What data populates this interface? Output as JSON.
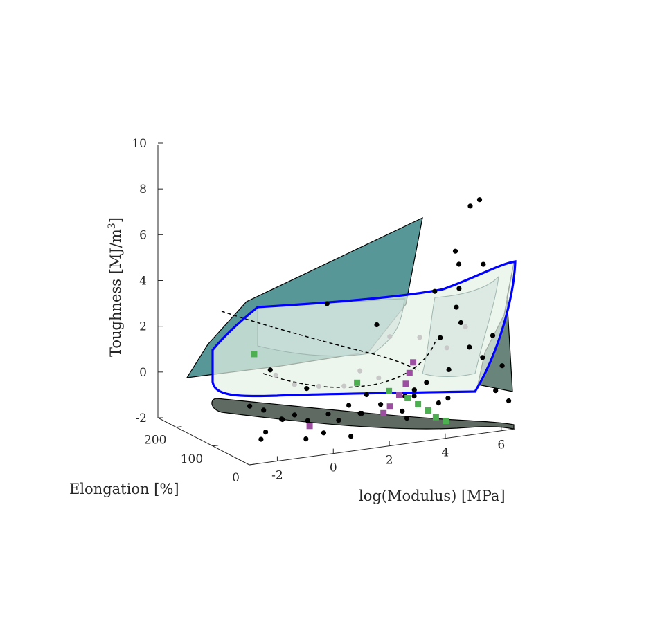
{
  "chart_data": {
    "type": "scatter",
    "projection": "3d",
    "xlabel": "log(Modulus) [MPa]",
    "ylabel": "Elongation [%]",
    "zlabel_main": "Toughness [MJ/m",
    "zlabel_sup": "3",
    "zlabel_tail": "]",
    "xticks": [
      "-2",
      "0",
      "2",
      "4",
      "6"
    ],
    "yticks": [
      "0",
      "100",
      "200"
    ],
    "zticks": [
      "-2",
      "0",
      "2",
      "4",
      "6",
      "8",
      "10"
    ],
    "xlim": [
      -3,
      6.5
    ],
    "ylim": [
      0,
      250
    ],
    "zlim": [
      -2,
      10
    ],
    "grid": false,
    "legend": "none",
    "colors": {
      "points": "#000000",
      "points_light": "#c8c8c8",
      "green_markers": "#4caf50",
      "purple_markers": "#9c4fa0",
      "boundary": "#0000ff",
      "back_surface": "#2e7d7d",
      "side_surface": "#4f6e63",
      "floor_shadow": "#5f6b62",
      "hull_fill": "#e6f2e6"
    },
    "series": [
      {
        "marker": "circle",
        "color": "#000000",
        "points": [
          [
            -2.8,
            20,
            1.0
          ],
          [
            -2.3,
            15,
            -0.2
          ],
          [
            -2.1,
            35,
            0.6
          ],
          [
            -2.0,
            25,
            2.4
          ],
          [
            -1.8,
            10,
            0.3
          ],
          [
            -1.5,
            30,
            0.1
          ],
          [
            -1.2,
            20,
            0.3
          ],
          [
            -0.8,
            15,
            0.0
          ],
          [
            -0.5,
            40,
            1.2
          ],
          [
            -0.3,
            10,
            -0.6
          ],
          [
            0.0,
            20,
            0.1
          ],
          [
            0.3,
            15,
            -0.2
          ],
          [
            0.5,
            60,
            4.6
          ],
          [
            0.8,
            25,
            0.3
          ],
          [
            1.0,
            10,
            0.0
          ],
          [
            1.2,
            20,
            -0.1
          ],
          [
            1.5,
            30,
            0.6
          ],
          [
            1.8,
            15,
            0.2
          ],
          [
            2.0,
            40,
            3.5
          ],
          [
            2.2,
            20,
            0.0
          ],
          [
            2.5,
            10,
            -0.2
          ],
          [
            2.8,
            25,
            0.3
          ],
          [
            3.0,
            15,
            0.6
          ],
          [
            3.2,
            30,
            0.2
          ],
          [
            3.5,
            20,
            0.8
          ],
          [
            3.8,
            10,
            -0.1
          ],
          [
            4.0,
            35,
            4.6
          ],
          [
            4.2,
            15,
            0.0
          ],
          [
            4.4,
            50,
            2.4
          ],
          [
            4.6,
            25,
            6.3
          ],
          [
            4.8,
            30,
            4.6
          ],
          [
            5.0,
            40,
            3.0
          ],
          [
            5.2,
            60,
            5.4
          ],
          [
            5.4,
            45,
            8.0
          ],
          [
            5.6,
            35,
            8.3
          ],
          [
            5.8,
            40,
            5.4
          ],
          [
            6.0,
            30,
            2.3
          ],
          [
            6.2,
            20,
            1.0
          ],
          [
            6.3,
            10,
            -0.5
          ],
          [
            5.9,
            15,
            0.0
          ],
          [
            5.5,
            20,
            1.5
          ],
          [
            5.1,
            25,
            2.0
          ],
          [
            4.7,
            30,
            3.8
          ],
          [
            4.3,
            20,
            1.2
          ],
          [
            -2.6,
            5,
            -0.4
          ],
          [
            -1.0,
            5,
            -0.7
          ],
          [
            0.6,
            5,
            -0.9
          ],
          [
            2.6,
            5,
            -0.5
          ]
        ]
      },
      {
        "marker": "circle",
        "color": "#c8c8c8",
        "points": [
          [
            -1.6,
            40,
            2.0
          ],
          [
            -1.0,
            35,
            1.5
          ],
          [
            0.9,
            45,
            1.0
          ],
          [
            1.4,
            40,
            1.6
          ],
          [
            2.6,
            50,
            2.8
          ],
          [
            3.6,
            45,
            2.6
          ],
          [
            4.5,
            40,
            2.0
          ],
          [
            5.3,
            50,
            2.7
          ],
          [
            -0.2,
            30,
            1.3
          ],
          [
            2.0,
            35,
            1.2
          ]
        ]
      },
      {
        "marker": "square",
        "color": "#4caf50",
        "points": [
          [
            -2.1,
            60,
            2.9
          ],
          [
            1.3,
            40,
            1.1
          ],
          [
            2.3,
            30,
            0.6
          ],
          [
            2.9,
            25,
            0.2
          ],
          [
            3.2,
            20,
            -0.1
          ],
          [
            3.5,
            15,
            -0.4
          ],
          [
            3.7,
            10,
            -0.7
          ],
          [
            4.0,
            5,
            -0.9
          ]
        ]
      },
      {
        "marker": "square",
        "color": "#9c4fa0",
        "points": [
          [
            -0.8,
            10,
            -0.2
          ],
          [
            1.9,
            15,
            -0.2
          ],
          [
            2.2,
            20,
            0.0
          ],
          [
            2.6,
            25,
            0.4
          ],
          [
            2.9,
            30,
            0.8
          ],
          [
            3.1,
            35,
            1.2
          ],
          [
            3.3,
            40,
            1.6
          ]
        ]
      }
    ]
  }
}
